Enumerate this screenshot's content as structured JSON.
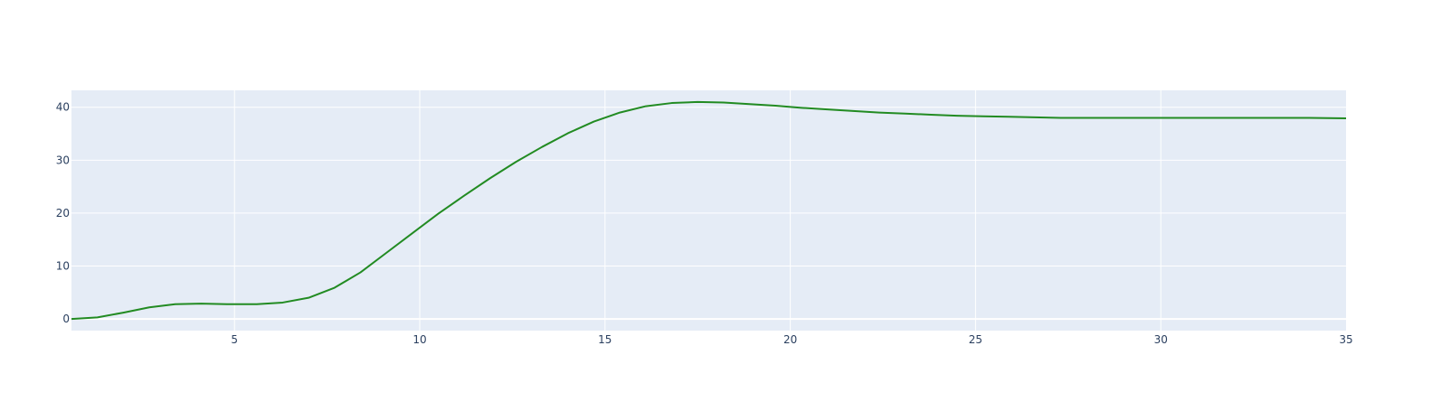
{
  "chart_data": {
    "type": "line",
    "title": "",
    "xlabel": "",
    "ylabel": "",
    "xlim": [
      0.6,
      35
    ],
    "ylim": [
      -2.2,
      43.2
    ],
    "x_ticks": [
      5,
      10,
      15,
      20,
      25,
      30,
      35
    ],
    "y_ticks": [
      0,
      10,
      20,
      30,
      40
    ],
    "grid": true,
    "legend": "none",
    "series": [
      {
        "color": "#228b22",
        "x": [
          0.6,
          1.3,
          2.0,
          2.7,
          3.4,
          4.1,
          4.8,
          5.6,
          6.3,
          7.0,
          7.7,
          8.4,
          9.1,
          9.8,
          10.5,
          11.2,
          11.9,
          12.6,
          13.3,
          14.0,
          14.7,
          15.4,
          16.1,
          16.8,
          17.5,
          18.2,
          18.9,
          19.6,
          20.3,
          21.0,
          21.7,
          22.4,
          23.1,
          23.8,
          24.5,
          25.2,
          25.9,
          26.6,
          27.3,
          28.0,
          29.0,
          30.0,
          31.0,
          32.0,
          33.0,
          34.0,
          35.0
        ],
        "y": [
          0.0,
          0.3,
          1.2,
          2.2,
          2.8,
          2.9,
          2.8,
          2.8,
          3.1,
          4.0,
          5.9,
          8.8,
          12.5,
          16.2,
          19.9,
          23.3,
          26.6,
          29.7,
          32.5,
          35.1,
          37.3,
          39.0,
          40.2,
          40.8,
          41.0,
          40.9,
          40.6,
          40.3,
          39.9,
          39.6,
          39.3,
          39.0,
          38.8,
          38.6,
          38.4,
          38.3,
          38.2,
          38.1,
          38.0,
          38.0,
          38.0,
          38.0,
          38.0,
          38.0,
          38.0,
          38.0,
          37.9
        ]
      }
    ]
  }
}
